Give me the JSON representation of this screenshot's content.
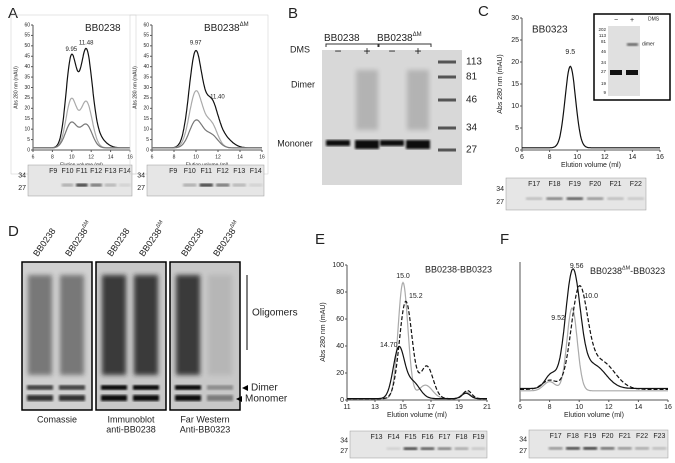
{
  "panels": {
    "A": {
      "label": "A",
      "y_axis": "Abs 280 nm (mAU)",
      "x_axis": "Elution volume (ml)",
      "yticks": [
        "0",
        "5",
        "10",
        "15",
        "20",
        "25",
        "30",
        "35",
        "40",
        "45",
        "50",
        "55",
        "60"
      ],
      "xticks": [
        "6",
        "8",
        "10",
        "12",
        "14",
        "16"
      ],
      "plots": [
        {
          "title": "BB0238",
          "sup": "",
          "peaks": [
            "9.95",
            "11.48"
          ]
        },
        {
          "title": "BB0238",
          "sup": "ΔM",
          "peaks": [
            "9.97",
            "11.40"
          ]
        }
      ],
      "gel_markers": [
        "34",
        "27"
      ],
      "fractions": [
        "F9",
        "F10",
        "F11",
        "F12",
        "F13",
        "F14"
      ]
    },
    "B": {
      "label": "B",
      "groups": [
        {
          "title": "BB0238",
          "sup": ""
        },
        {
          "title": "BB0238",
          "sup": "ΔM"
        }
      ],
      "treatment": "DMS",
      "signs": [
        "−",
        "+",
        "−",
        "+"
      ],
      "bands": [
        "Dimer",
        "Mononer"
      ],
      "markers": [
        "113",
        "81",
        "46",
        "34",
        "27"
      ]
    },
    "C": {
      "label": "C",
      "title": "BB0323",
      "y_axis": "Abs 280 nm (mAU)",
      "x_axis": "Elution volume (ml)",
      "yticks": [
        "0",
        "5",
        "10",
        "15",
        "20",
        "25",
        "30"
      ],
      "xticks": [
        "6",
        "8",
        "10",
        "12",
        "14",
        "16"
      ],
      "peak": "9.5",
      "inset": {
        "markers": [
          "202",
          "113",
          "81",
          "46",
          "34",
          "27",
          "19",
          "9"
        ],
        "signs": [
          "−",
          "+"
        ],
        "treatment": "DMS",
        "band": "dimer"
      },
      "gel_markers": [
        "34",
        "27"
      ],
      "fractions": [
        "F17",
        "F18",
        "F19",
        "F20",
        "F21",
        "F22"
      ]
    },
    "D": {
      "label": "D",
      "blots": [
        {
          "lanes": [
            {
              "name": "BB0238",
              "sup": ""
            },
            {
              "name": "BB0238",
              "sup": "ΔM"
            }
          ],
          "caption": [
            "Comassie"
          ]
        },
        {
          "lanes": [
            {
              "name": "BB0238",
              "sup": ""
            },
            {
              "name": "BB0238",
              "sup": "ΔM"
            }
          ],
          "caption": [
            "Immunoblot",
            "anti-BB0238"
          ]
        },
        {
          "lanes": [
            {
              "name": "BB0238",
              "sup": ""
            },
            {
              "name": "BB0238",
              "sup": "ΔM"
            }
          ],
          "caption": [
            "Far Western",
            "Anti-BB0323"
          ]
        }
      ],
      "oligomers": "Oligomers",
      "dimer": "Dimer",
      "monomer": "Monomer"
    },
    "E": {
      "label": "E",
      "title": "BB0238-BB0323",
      "y_axis": "Abs 280 nm (mAU)",
      "x_axis": "Elution volume (ml)",
      "yticks": [
        "0",
        "20",
        "40",
        "60",
        "80",
        "100"
      ],
      "xticks": [
        "11",
        "13",
        "15",
        "17",
        "19",
        "21"
      ],
      "peaks": [
        "15.0",
        "15.2",
        "14.70"
      ],
      "gel_markers": [
        "34",
        "27"
      ],
      "fractions": [
        "F13",
        "F14",
        "F15",
        "F16",
        "F17",
        "F18",
        "F19"
      ]
    },
    "F": {
      "label": "F",
      "title": "BB0238",
      "sup": "ΔM",
      "title_end": "-BB0323",
      "x_axis": "Elution volume (ml)",
      "xticks": [
        "6",
        "8",
        "10",
        "12",
        "14",
        "16"
      ],
      "peaks": [
        "9.56",
        "10.0",
        "9.52"
      ],
      "gel_markers": [
        "34",
        "27"
      ],
      "fractions": [
        "F17",
        "F18",
        "F19",
        "F20",
        "F21",
        "F22",
        "F23"
      ]
    }
  }
}
